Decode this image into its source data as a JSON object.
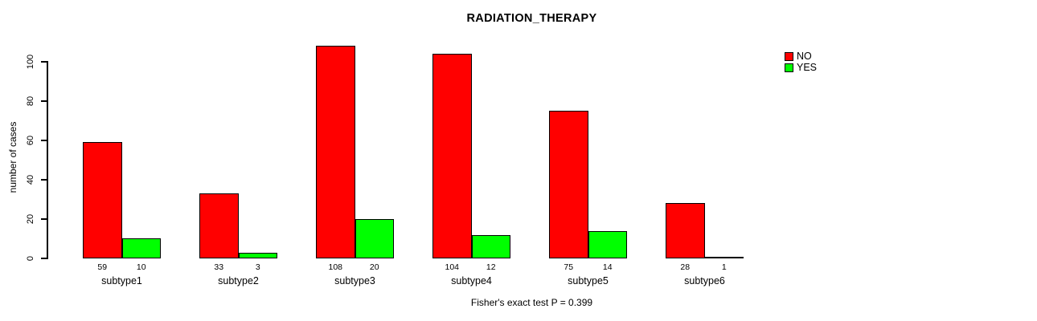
{
  "chart_data": {
    "type": "bar",
    "title": "RADIATION_THERAPY",
    "ylabel": "number of cases",
    "xlabel": "",
    "categories": [
      "subtype1",
      "subtype2",
      "subtype3",
      "subtype4",
      "subtype5",
      "subtype6"
    ],
    "series": [
      {
        "name": "NO",
        "color": "#ff0000",
        "values": [
          59,
          33,
          108,
          104,
          75,
          28
        ]
      },
      {
        "name": "YES",
        "color": "#00ff00",
        "values": [
          10,
          3,
          20,
          12,
          14,
          1
        ]
      }
    ],
    "yticks": [
      0,
      20,
      40,
      60,
      80,
      100
    ],
    "ylim": [
      0,
      108
    ],
    "grid": false,
    "value_labels_shown": true,
    "legend_position": "top-right",
    "footnote": "Fisher's exact test P = 0.399"
  }
}
